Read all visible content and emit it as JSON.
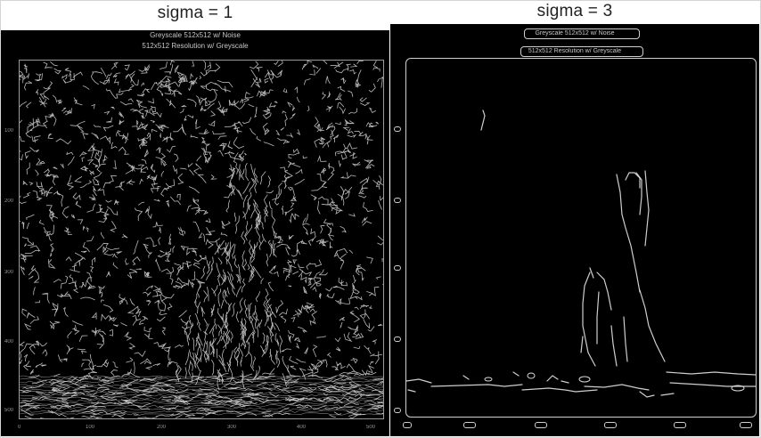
{
  "left_panel": {
    "title": "sigma = 1",
    "header_line1": "Greyscale 512x512 w/ Noise",
    "header_line2": "512x512 Resolution w/ Greyscale",
    "y_ticks": [
      "100",
      "200",
      "300",
      "400",
      "500"
    ],
    "x_ticks": [
      "0",
      "100",
      "200",
      "300",
      "400",
      "500"
    ]
  },
  "right_panel": {
    "title": "sigma = 3",
    "header_line1": "Greyscale 512x512 w/ Noise",
    "header_line2": "512x512 Resolution w/ Greyscale"
  },
  "colors": {
    "background": "#000000",
    "edge": "#d9d9d9",
    "axis": "#9a9a9a"
  }
}
